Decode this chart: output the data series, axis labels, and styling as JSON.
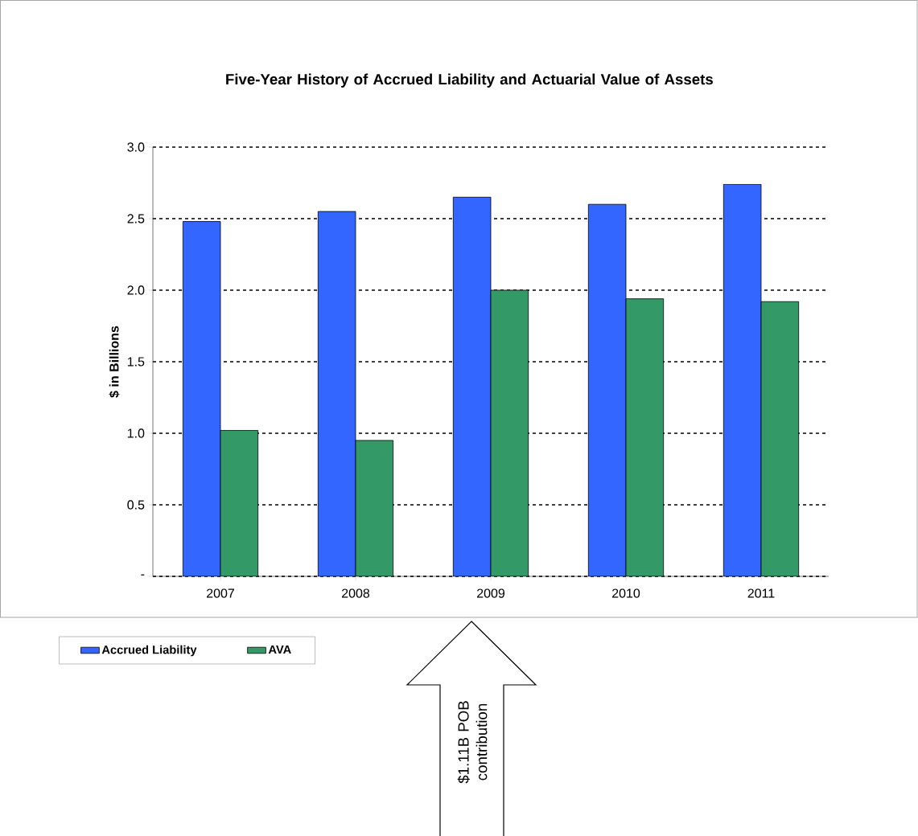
{
  "chart_data": {
    "type": "bar",
    "title": "Five-Year History of Accrued Liability and Actuarial Value of Assets",
    "ylabel": "$ in Billions",
    "categories": [
      "2007",
      "2008",
      "2009",
      "2010",
      "2011"
    ],
    "series": [
      {
        "name": "Accrued Liability",
        "color": "#3366ff",
        "values": [
          2.48,
          2.55,
          2.65,
          2.6,
          2.74
        ]
      },
      {
        "name": "AVA",
        "color": "#339966",
        "values": [
          1.02,
          0.95,
          2.0,
          1.94,
          1.92
        ]
      }
    ],
    "ylim": [
      0,
      3.0
    ],
    "yticks": [
      {
        "value": 0,
        "label": "-"
      },
      {
        "value": 0.5,
        "label": "0.5"
      },
      {
        "value": 1.0,
        "label": "1.0"
      },
      {
        "value": 1.5,
        "label": "1.5"
      },
      {
        "value": 2.0,
        "label": "2.0"
      },
      {
        "value": 2.5,
        "label": "2.5"
      },
      {
        "value": 3.0,
        "label": "3.0"
      }
    ],
    "grid": "y",
    "legend": "bottom left",
    "annotations": [
      "$1.11B POB contribution"
    ]
  }
}
